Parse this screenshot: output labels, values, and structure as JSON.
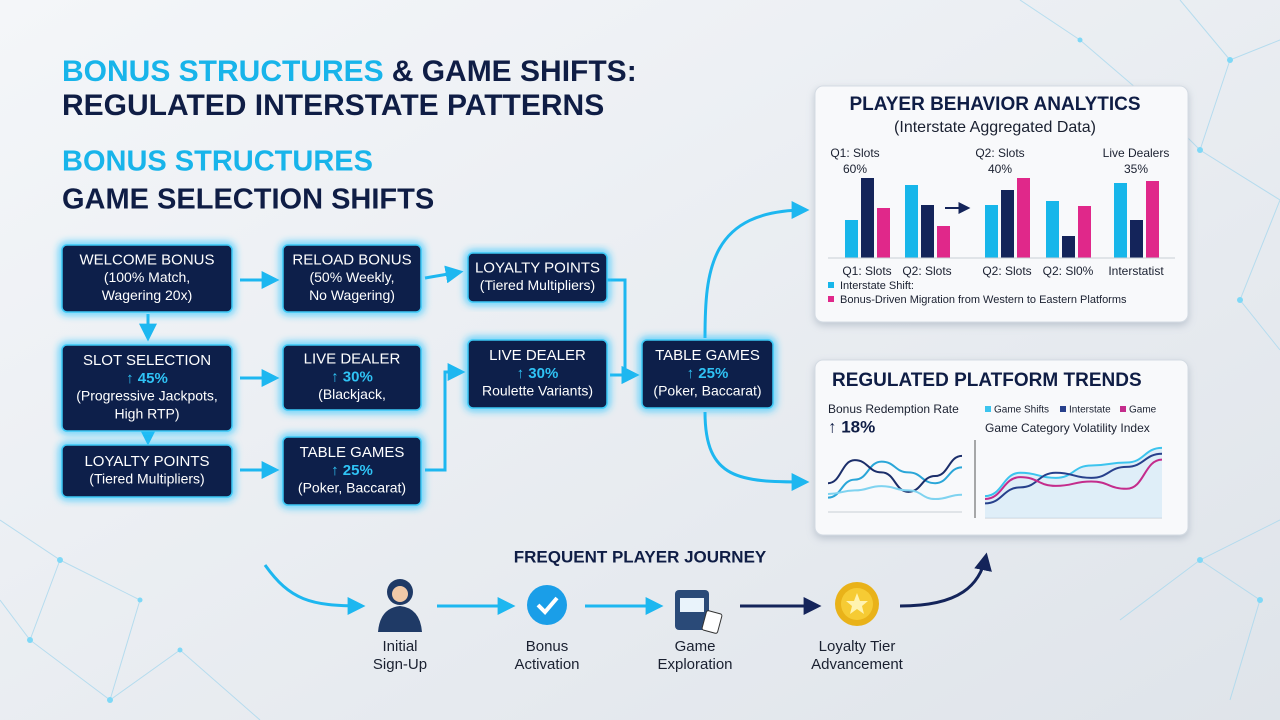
{
  "header": {
    "title_accent": "BONUS STRUCTURES",
    "title_rest": "& GAME SHIFTS:",
    "title_line2": "REGULATED INTERSTATE PATTERNS",
    "subtitle_accent": "BONUS STRUCTURES",
    "subtitle_rest": "GAME SELECTION SHIFTS"
  },
  "nodes": [
    {
      "title": "WELCOME BONUS",
      "lines": [
        "(100% Match,",
        "Wagering 20x)"
      ]
    },
    {
      "title": "SLOT SELECTION",
      "highlight": "↑ 45%",
      "lines": [
        "(Progressive Jackpots,",
        "High RTP)"
      ]
    },
    {
      "title": "LOYALTY POINTS",
      "lines": [
        "(Tiered Multipliers)"
      ]
    },
    {
      "title": "RELOAD BONUS",
      "lines": [
        "(50% Weekly,",
        "No Wagering)"
      ]
    },
    {
      "title": "LIVE DEALER",
      "highlight": "↑ 30%",
      "lines": [
        "(Blackjack,"
      ]
    },
    {
      "title": "TABLE GAMES",
      "highlight": "↑ 25%",
      "lines": [
        "(Poker, Baccarat)"
      ]
    },
    {
      "title": "LOYALTY POINTS",
      "lines": [
        "(Tiered Multipliers)"
      ]
    },
    {
      "title": "LIVE DEALER",
      "highlight": "↑ 30%",
      "lines": [
        "Roulette Variants)"
      ]
    },
    {
      "title": "TABLE GAMES",
      "highlight": "↑ 25%",
      "lines": [
        "(Poker, Baccarat)"
      ]
    }
  ],
  "analytics": {
    "title": "PLAYER BEHAVIOR ANALYTICS",
    "subtitle": "(Interstate Aggregated Data)",
    "callouts": [
      {
        "label": "Q1: Slots",
        "value": "60%"
      },
      {
        "label": "Q2: Slots",
        "value": "40%"
      },
      {
        "label": "Live Dealers",
        "value": "35%"
      }
    ],
    "categories": [
      "Q1: Slots",
      "Q2: Slots",
      "Q2: Slots",
      "Q2: Sl0%",
      "Interstatist"
    ],
    "ylim": [
      0,
      85
    ],
    "series": [
      {
        "color": "#17b6ea",
        "values": [
          38,
          73,
          53,
          57,
          75
        ]
      },
      {
        "color": "#14245a",
        "values": [
          80,
          53,
          68,
          22,
          38
        ]
      },
      {
        "color": "#e0288a",
        "values": [
          50,
          32,
          80,
          52,
          77
        ]
      }
    ],
    "legend": [
      "Interstate Shift:",
      "Bonus-Driven Migration from Western to Eastern Platforms"
    ]
  },
  "trends": {
    "title": "REGULATED PLATFORM TRENDS",
    "metric": "Bonus Redemption Rate",
    "metric_value": "↑ 18%",
    "legend": [
      "Game Shifts",
      "Interstate",
      "Game"
    ],
    "index_label": "Game Category Volatility Index",
    "ylim": [
      0,
      100
    ],
    "left_series": [
      {
        "color": "#2aa6d8",
        "values": [
          20,
          45,
          70,
          55,
          40,
          62
        ]
      },
      {
        "color": "#1b2e6a",
        "values": [
          40,
          72,
          55,
          28,
          50,
          78
        ]
      },
      {
        "color": "#7fd3f0",
        "values": [
          25,
          30,
          36,
          30,
          18,
          24
        ]
      }
    ],
    "right_series": [
      {
        "color": "#3cc4ee",
        "values": [
          30,
          62,
          55,
          72,
          76,
          96
        ]
      },
      {
        "color": "#27408c",
        "values": [
          20,
          42,
          62,
          55,
          70,
          88
        ]
      },
      {
        "color": "#c42c8c",
        "values": [
          26,
          56,
          44,
          50,
          40,
          80
        ]
      }
    ]
  },
  "journey": {
    "title": "FREQUENT PLAYER JOURNEY",
    "steps": [
      {
        "lines": [
          "Initial",
          "Sign-Up"
        ]
      },
      {
        "lines": [
          "Bonus",
          "Activation"
        ]
      },
      {
        "lines": [
          "Game",
          "Exploration"
        ]
      },
      {
        "lines": [
          "Loyalty Tier",
          "Advancement"
        ]
      }
    ]
  }
}
